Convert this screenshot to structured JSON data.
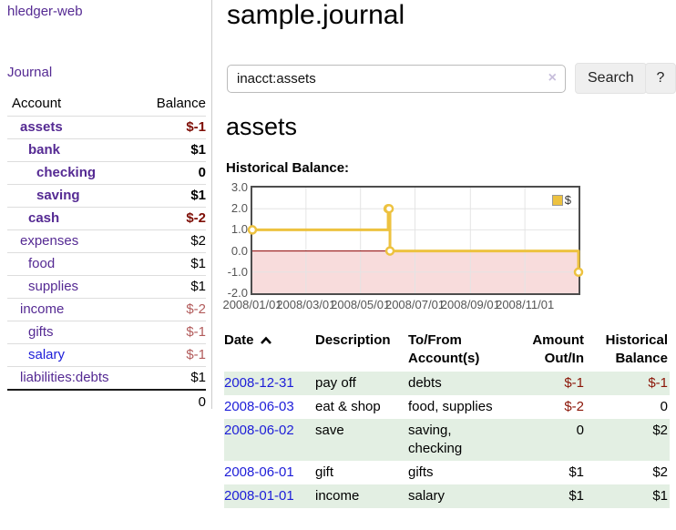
{
  "colors": {
    "link_purple": "#552a93",
    "link_blue": "#1d1dd8",
    "negative_bold": "#7e0e06",
    "negative_soft": "#b25b5b",
    "negative_table": "#8b1507",
    "row_stripe_green": "#e3efe3",
    "chart_line_gold": "#EDC240",
    "chart_negative_region": "#f8dcdc",
    "chart_zero_line": "#8b0000",
    "chart_grid": "#e4e4e4",
    "button_gray": "#efefef"
  },
  "sidebar": {
    "brand": "hledger-web",
    "journal_link": "Journal",
    "accounts_table": {
      "header_account": "Account",
      "header_balance": "Balance",
      "rows": [
        {
          "name": "assets",
          "indent": 1,
          "bold": true,
          "balance": "$-1"
        },
        {
          "name": "bank",
          "indent": 2,
          "bold": true,
          "balance": "$1"
        },
        {
          "name": "checking",
          "indent": 3,
          "bold": true,
          "balance": "0"
        },
        {
          "name": "saving",
          "indent": 3,
          "bold": true,
          "balance": "$1"
        },
        {
          "name": "cash",
          "indent": 2,
          "bold": true,
          "balance": "$-2"
        },
        {
          "name": "expenses",
          "indent": 1,
          "bold": false,
          "balance": "$2"
        },
        {
          "name": "food",
          "indent": 2,
          "bold": false,
          "balance": "$1"
        },
        {
          "name": "supplies",
          "indent": 2,
          "bold": false,
          "balance": "$1"
        },
        {
          "name": "income",
          "indent": 1,
          "bold": false,
          "balance": "$-2"
        },
        {
          "name": "gifts",
          "indent": 2,
          "bold": false,
          "balance": "$-1"
        },
        {
          "name": "salary",
          "indent": 2,
          "bold": false,
          "balance": "$-1",
          "link_style": "blue"
        },
        {
          "name": "liabilities:debts",
          "indent": 1,
          "bold": false,
          "balance": "$1"
        }
      ],
      "total": "0"
    }
  },
  "main": {
    "title": "sample.journal",
    "search": {
      "value": "inacct:assets",
      "clear_icon": "×",
      "search_button": "Search",
      "help_button": "?"
    },
    "account_heading": "assets",
    "chart_heading": "Historical Balance:",
    "register": {
      "headers": [
        "Date",
        "Description",
        "To/From Account(s)",
        "Amount Out/In",
        "Historical Balance"
      ],
      "sort": {
        "column": "Date",
        "direction": "ascending"
      },
      "rows": [
        {
          "date": "2008-12-31",
          "description": "pay off",
          "accounts": "debts",
          "amount": "$-1",
          "balance": "$-1"
        },
        {
          "date": "2008-06-03",
          "description": "eat & shop",
          "accounts": "food, supplies",
          "amount": "$-2",
          "balance": "0"
        },
        {
          "date": "2008-06-02",
          "description": "save",
          "accounts": "saving, checking",
          "amount": "0",
          "balance": "$2"
        },
        {
          "date": "2008-06-01",
          "description": "gift",
          "accounts": "gifts",
          "amount": "$1",
          "balance": "$2"
        },
        {
          "date": "2008-01-01",
          "description": "income",
          "accounts": "salary",
          "amount": "$1",
          "balance": "$1"
        }
      ]
    }
  },
  "chart_data": {
    "type": "line",
    "step": true,
    "title": "Historical Balance:",
    "series": [
      {
        "name": "$",
        "points": [
          [
            "2008-01-01",
            1
          ],
          [
            "2008-06-01",
            2
          ],
          [
            "2008-06-02",
            2
          ],
          [
            "2008-06-03",
            0
          ],
          [
            "2008-12-31",
            -1
          ]
        ]
      }
    ],
    "x_range": [
      "2008-01-01",
      "2008-12-31"
    ],
    "ylim": [
      -2,
      3
    ],
    "yticks": [
      {
        "label": "3.0",
        "value": 3
      },
      {
        "label": "2.0",
        "value": 2
      },
      {
        "label": "1.0",
        "value": 1
      },
      {
        "label": "0.0",
        "value": 0
      },
      {
        "label": "-1.0",
        "value": -1
      },
      {
        "label": "-2.0",
        "value": -2
      }
    ],
    "xticks": [
      {
        "label": "2008/01/01",
        "date": "2008-01-01"
      },
      {
        "label": "2008/03/01",
        "date": "2008-03-01"
      },
      {
        "label": "2008/05/01",
        "date": "2008-05-01"
      },
      {
        "label": "2008/07/01",
        "date": "2008-07-01"
      },
      {
        "label": "2008/09/01",
        "date": "2008-09-01"
      },
      {
        "label": "2008/11/01",
        "date": "2008-11-01"
      }
    ],
    "legend": {
      "label": "$",
      "position": "top-right"
    },
    "grid": true,
    "negative_region_shaded": true
  }
}
